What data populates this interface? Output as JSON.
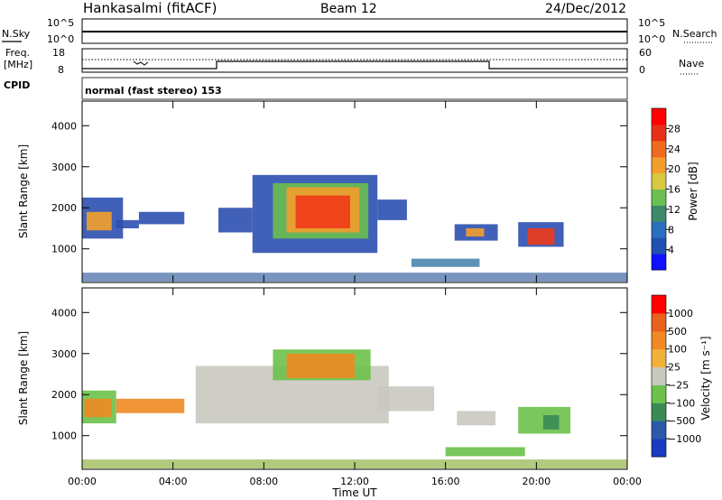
{
  "header": {
    "station": "Hankasalmi (fitACF)",
    "beam": "Beam 12",
    "date": "24/Dec/2012"
  },
  "top_panels": {
    "nsky_label": "N.Sky",
    "nsearch_label": "N.Search",
    "noise_ticks": [
      "10^5",
      "10^0"
    ],
    "freq_label_line1": "Freq.",
    "freq_label_line2": "[MHz]",
    "freq_ticks": [
      "18",
      "8"
    ],
    "nave_label": "Nave",
    "nave_ticks": [
      "60",
      "0"
    ],
    "cpid_label": "CPID",
    "cpid_value": "normal (fast stereo) 153"
  },
  "chart_data": [
    {
      "type": "heatmap",
      "name": "Power",
      "ylabel": "Slant Range [km]",
      "ylim": [
        180,
        4600
      ],
      "yticks": [
        1000,
        2000,
        3000,
        4000
      ],
      "xlim_hours": [
        0,
        24
      ],
      "colorbar": {
        "label": "Power [dB]",
        "ticks": [
          "4",
          "8",
          "12",
          "16",
          "20",
          "24",
          "28"
        ],
        "colors": [
          "#1010ff",
          "#2050b0",
          "#2a6ec0",
          "#3c8a6a",
          "#6cbf50",
          "#d8c840",
          "#f39d2c",
          "#ef6b1f",
          "#e83018",
          "#ff0000"
        ]
      },
      "regions": [
        {
          "t0": 0.0,
          "t1": 1.8,
          "r0": 1250,
          "r1": 2250,
          "color": "#2c4fb0"
        },
        {
          "t0": 0.2,
          "t1": 1.3,
          "r0": 1450,
          "r1": 1900,
          "color": "#f3a12c"
        },
        {
          "t0": 1.5,
          "t1": 2.5,
          "r0": 1500,
          "r1": 1700,
          "color": "#2c4fb0"
        },
        {
          "t0": 2.5,
          "t1": 4.5,
          "r0": 1600,
          "r1": 1900,
          "color": "#2c4fb0"
        },
        {
          "t0": 6.0,
          "t1": 7.5,
          "r0": 1400,
          "r1": 2000,
          "color": "#2c4fb0"
        },
        {
          "t0": 7.5,
          "t1": 13.0,
          "r0": 900,
          "r1": 2800,
          "color": "#2c4fb0"
        },
        {
          "t0": 8.4,
          "t1": 12.6,
          "r0": 1250,
          "r1": 2600,
          "color": "#6cbf50"
        },
        {
          "t0": 9.0,
          "t1": 12.2,
          "r0": 1400,
          "r1": 2500,
          "color": "#f39d2c"
        },
        {
          "t0": 9.4,
          "t1": 11.8,
          "r0": 1500,
          "r1": 2300,
          "color": "#ef3a1a"
        },
        {
          "t0": 13.0,
          "t1": 14.3,
          "r0": 1700,
          "r1": 2200,
          "color": "#2c4fb0"
        },
        {
          "t0": 16.4,
          "t1": 18.3,
          "r0": 1200,
          "r1": 1600,
          "color": "#2c4fb0"
        },
        {
          "t0": 16.9,
          "t1": 17.7,
          "r0": 1300,
          "r1": 1500,
          "color": "#f39d2c"
        },
        {
          "t0": 19.2,
          "t1": 21.2,
          "r0": 1050,
          "r1": 1650,
          "color": "#2c4fb0"
        },
        {
          "t0": 19.6,
          "t1": 20.8,
          "r0": 1100,
          "r1": 1500,
          "color": "#ef3a1a"
        },
        {
          "t0": 14.5,
          "t1": 17.5,
          "r0": 560,
          "r1": 760,
          "color": "#4a86b0"
        },
        {
          "t0": 0.0,
          "t1": 24.0,
          "r0": 200,
          "r1": 420,
          "color": "#6a8ab8"
        }
      ]
    },
    {
      "type": "heatmap",
      "name": "Velocity",
      "ylabel": "Slant Range [km]",
      "ylim": [
        180,
        4600
      ],
      "yticks": [
        1000,
        2000,
        3000,
        4000
      ],
      "xlim_hours": [
        0,
        24
      ],
      "xticks": [
        "00:00",
        "04:00",
        "08:00",
        "12:00",
        "16:00",
        "20:00",
        "00:00"
      ],
      "xlabel": "Time UT",
      "colorbar": {
        "label": "Velocity [m s⁻¹]",
        "ticks": [
          "1000",
          "500",
          "100",
          "25",
          "−25",
          "−100",
          "−500",
          "−1000"
        ],
        "colors": [
          "#1a3cc0",
          "#2c58a8",
          "#3a8a56",
          "#6cc24a",
          "#c9c9c0",
          "#f2b23a",
          "#f08a24",
          "#e9611c",
          "#ff0000"
        ]
      },
      "regions": [
        {
          "t0": 0.0,
          "t1": 1.5,
          "r0": 1300,
          "r1": 2100,
          "color": "#6cc24a"
        },
        {
          "t0": 0.1,
          "t1": 1.3,
          "r0": 1450,
          "r1": 1900,
          "color": "#f08a24"
        },
        {
          "t0": 1.5,
          "t1": 4.5,
          "r0": 1550,
          "r1": 1900,
          "color": "#f08a24"
        },
        {
          "t0": 5.0,
          "t1": 13.5,
          "r0": 1300,
          "r1": 2700,
          "color": "#c9c9c0"
        },
        {
          "t0": 8.4,
          "t1": 12.7,
          "r0": 2350,
          "r1": 3100,
          "color": "#6cc24a"
        },
        {
          "t0": 9.0,
          "t1": 12.0,
          "r0": 2400,
          "r1": 3000,
          "color": "#f08a24"
        },
        {
          "t0": 13.0,
          "t1": 15.5,
          "r0": 1600,
          "r1": 2200,
          "color": "#c9c9c0"
        },
        {
          "t0": 16.5,
          "t1": 18.2,
          "r0": 1250,
          "r1": 1600,
          "color": "#c9c9c0"
        },
        {
          "t0": 19.2,
          "t1": 21.5,
          "r0": 1050,
          "r1": 1700,
          "color": "#6cc24a"
        },
        {
          "t0": 20.3,
          "t1": 21.0,
          "r0": 1150,
          "r1": 1500,
          "color": "#3a8a56"
        },
        {
          "t0": 16.0,
          "t1": 19.5,
          "r0": 500,
          "r1": 720,
          "color": "#6cc24a"
        },
        {
          "t0": 0.0,
          "t1": 24.0,
          "r0": 200,
          "r1": 420,
          "color": "#a8c470"
        }
      ]
    }
  ]
}
